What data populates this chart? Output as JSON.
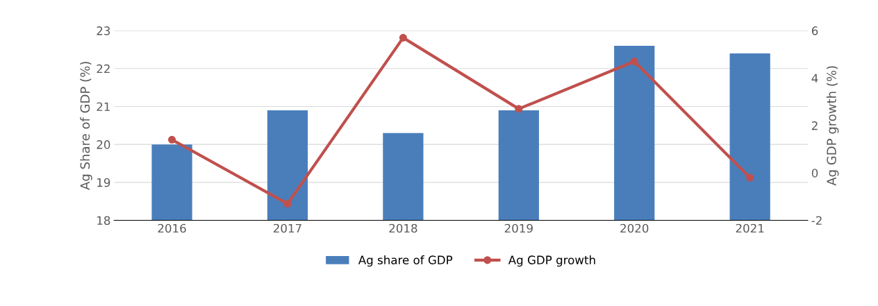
{
  "chart_data": {
    "type": "bar",
    "categories": [
      "2016",
      "2017",
      "2018",
      "2019",
      "2020",
      "2021"
    ],
    "ylabel": "Ag Share of GDP (%)",
    "y2label": "Ag GDP growth (%)",
    "series": [
      {
        "name": "Ag share of GDP",
        "color": "#4a7ebb",
        "values": [
          20.0,
          20.9,
          20.3,
          20.9,
          22.6,
          22.4
        ]
      },
      {
        "name": "Ag GDP growth",
        "type": "line",
        "axis": "y2",
        "color": "#c0504d",
        "marker": "circle",
        "values": [
          1.4,
          -1.3,
          5.7,
          2.7,
          4.7,
          -0.2
        ]
      }
    ],
    "ylim": [
      18,
      23
    ],
    "yticks": [
      18,
      19,
      20,
      21,
      22,
      23
    ],
    "y2lim": [
      -2,
      6
    ],
    "y2ticks": [
      -2,
      0,
      2,
      4,
      6
    ],
    "grid": "y",
    "legend": "bottom"
  }
}
